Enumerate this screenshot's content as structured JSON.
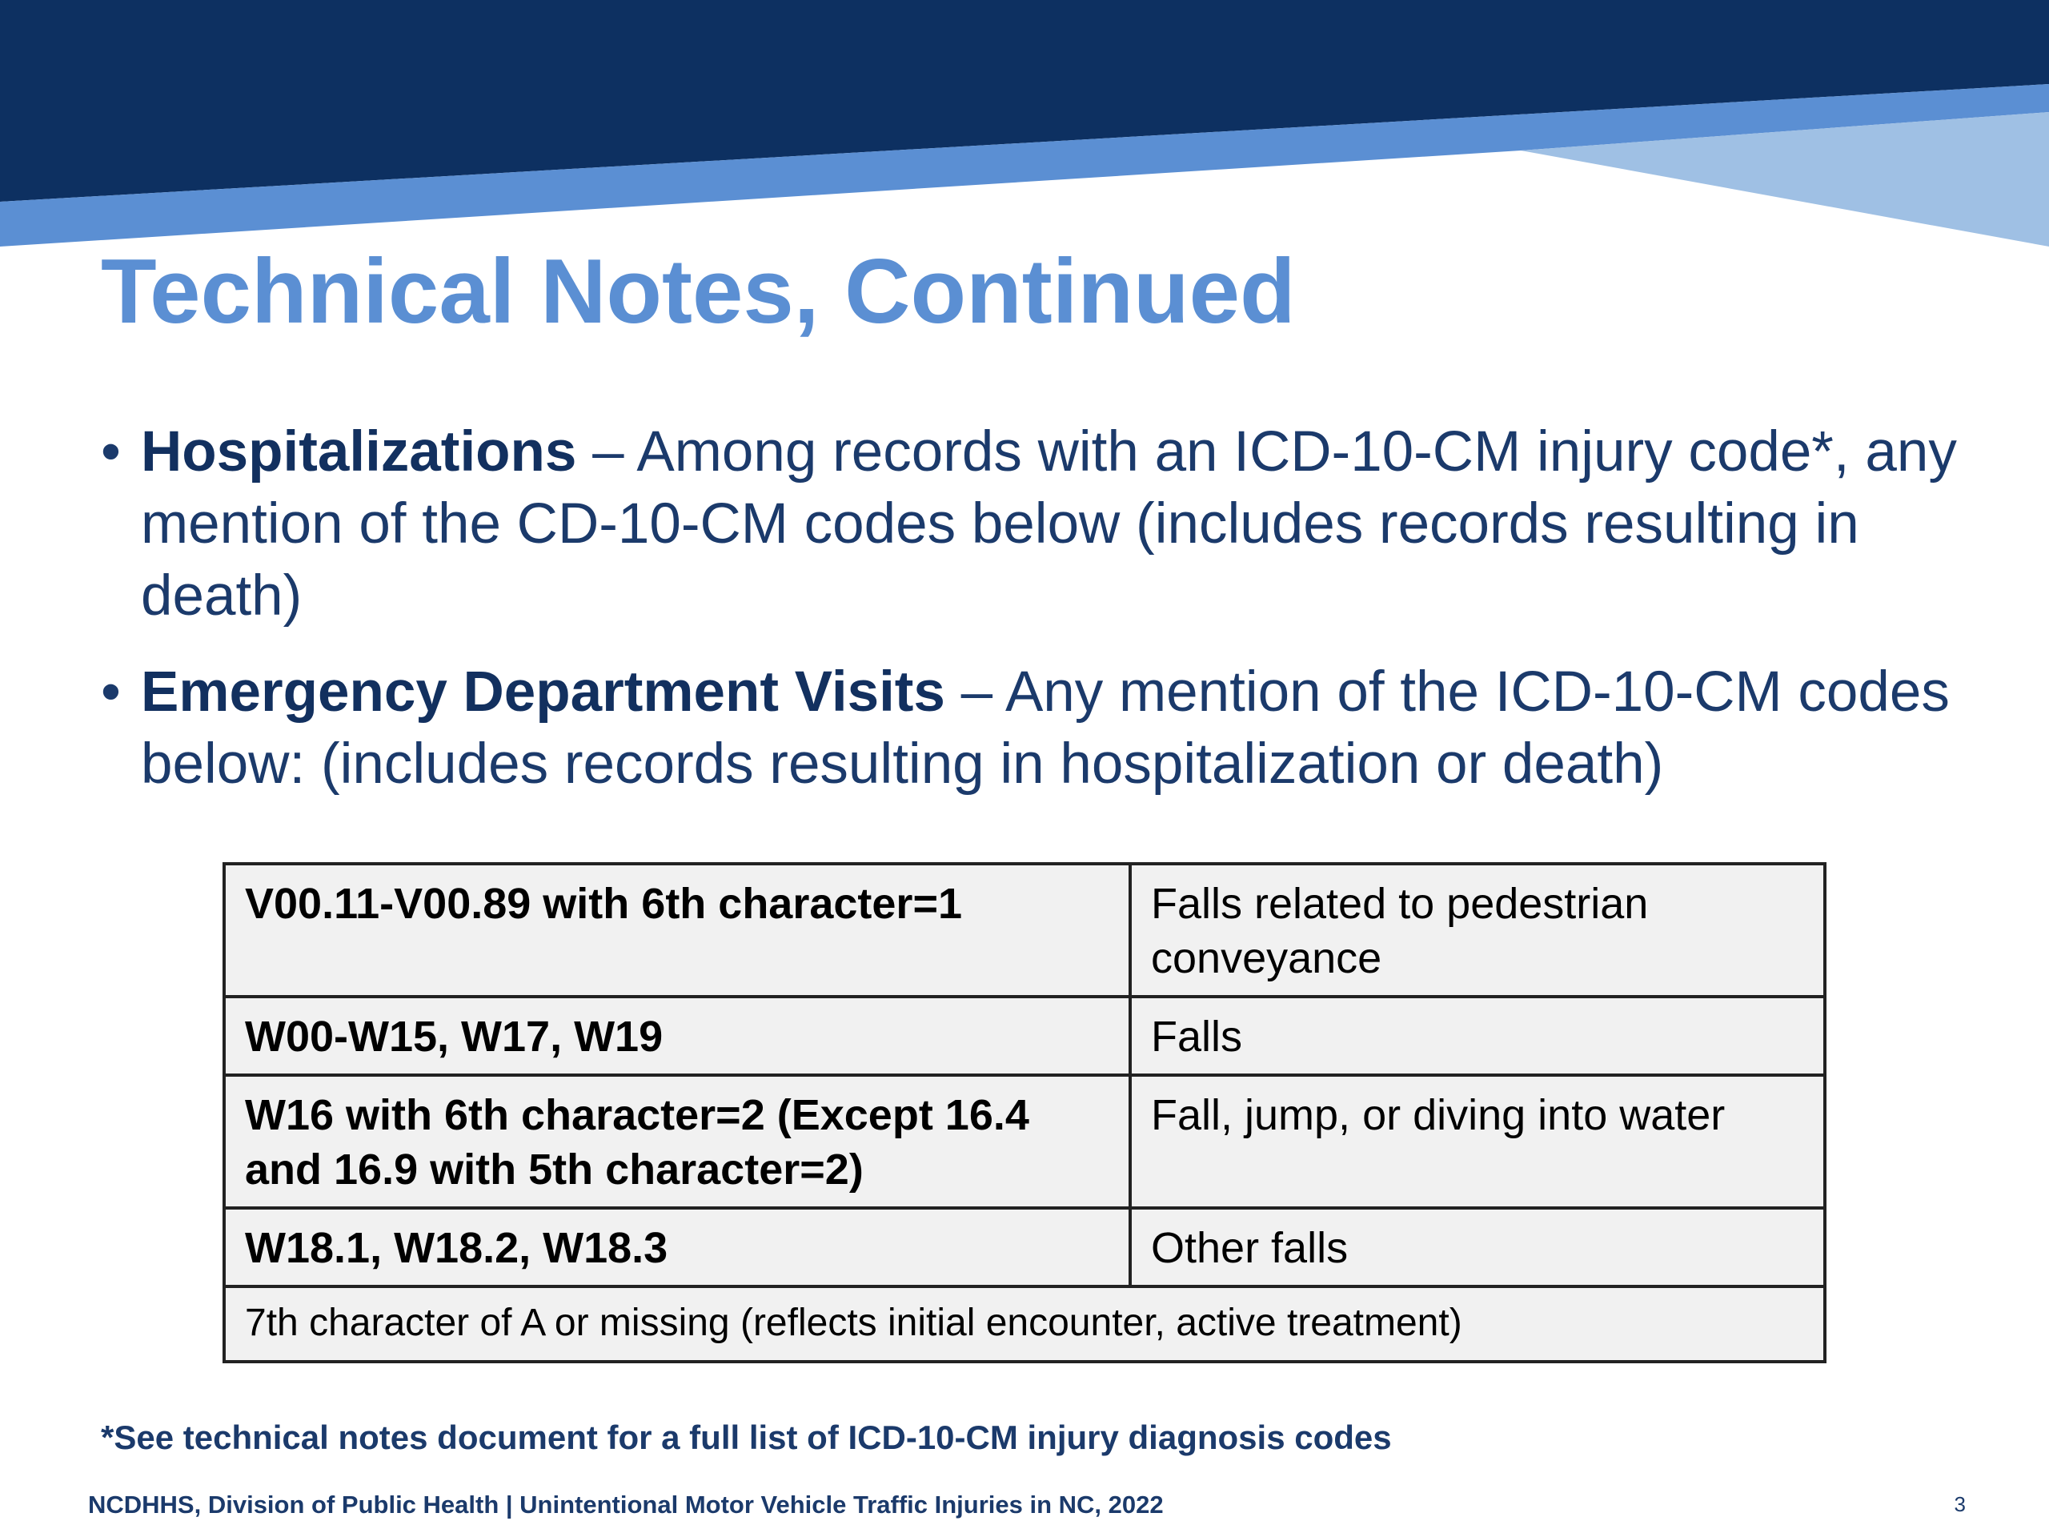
{
  "colors": {
    "banner_dark": "#0d3061",
    "banner_medium": "#5b8fd3",
    "banner_light": "#9fc0e4",
    "title": "#5b8fd3",
    "body_text": "#1b3a6b"
  },
  "slide": {
    "title": "Technical Notes, Continued",
    "bullets": [
      {
        "term": "Hospitalizations",
        "text": " – Among records with an ICD-10-CM injury code*, any mention of the CD-10-CM codes below (includes records resulting in death)"
      },
      {
        "term": "Emergency Department Visits",
        "text": " – Any mention of the ICD-10-CM codes below: (includes records resulting in hospitalization or death)"
      }
    ],
    "table": {
      "rows": [
        {
          "code": "V00.11-V00.89 with 6th character=1",
          "description": "Falls related to pedestrian conveyance"
        },
        {
          "code": "W00-W15, W17, W19",
          "description": "Falls"
        },
        {
          "code": "W16 with 6th character=2 (Except 16.4 and 16.9 with 5th character=2)",
          "description": "Fall, jump, or diving into water"
        },
        {
          "code": "W18.1, W18.2, W18.3",
          "description": "Other falls"
        }
      ],
      "note_row": "7th character of A or missing (reflects initial encounter, active treatment)"
    },
    "footnote": "*See technical notes document for a full list of ICD-10-CM injury diagnosis codes",
    "footer": "NCDHHS, Division of Public Health | Unintentional Motor Vehicle Traffic Injuries in NC, 2022",
    "page_number": "3"
  }
}
